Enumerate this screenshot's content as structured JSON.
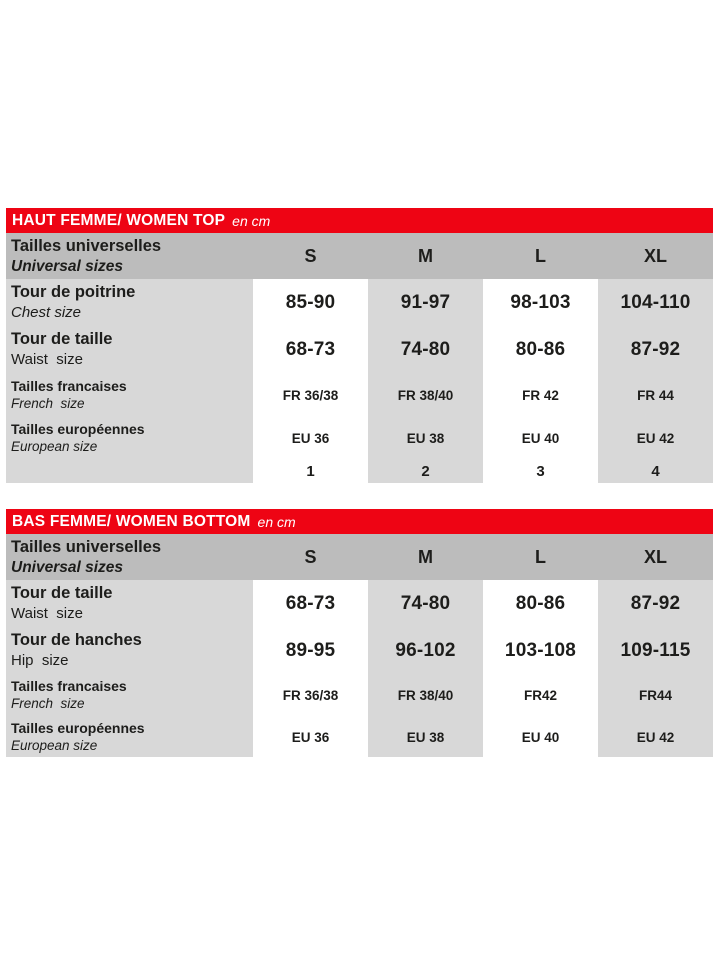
{
  "colors": {
    "banner_red": "#ee0414",
    "header_gray": "#bcbcbc",
    "stripe_gray": "#d8d8d8",
    "text": "#1d1d1b"
  },
  "chart_data": [
    {
      "type": "table",
      "title": "HAUT FEMME/ WOMEN TOP en cm",
      "columns": [
        "Tailles universelles / Universal sizes",
        "S",
        "M",
        "L",
        "XL"
      ],
      "rows": [
        [
          "Tour de poitrine / Chest size",
          "85-90",
          "91-97",
          "98-103",
          "104-110"
        ],
        [
          "Tour de taille / Waist size",
          "68-73",
          "74-80",
          "80-86",
          "87-92"
        ],
        [
          "Tailles francaises / French size",
          "FR 36/38",
          "FR 38/40",
          "FR 42",
          "FR 44"
        ],
        [
          "Tailles européennes / European size",
          "EU 36",
          "EU 38",
          "EU 40",
          "EU 42"
        ],
        [
          "",
          "1",
          "2",
          "3",
          "4"
        ]
      ]
    },
    {
      "type": "table",
      "title": "BAS FEMME/ WOMEN BOTTOM en cm",
      "columns": [
        "Tailles universelles / Universal sizes",
        "S",
        "M",
        "L",
        "XL"
      ],
      "rows": [
        [
          "Tour de taille / Waist size",
          "68-73",
          "74-80",
          "80-86",
          "87-92"
        ],
        [
          "Tour de hanches / Hip size",
          "89-95",
          "96-102",
          "103-108",
          "109-115"
        ],
        [
          "Tailles francaises / French size",
          "FR 36/38",
          "FR 38/40",
          "FR42",
          "FR44"
        ],
        [
          "Tailles européennes / European size",
          "EU 36",
          "EU 38",
          "EU 40",
          "EU 42"
        ]
      ]
    }
  ],
  "tables": [
    {
      "banner": {
        "title": "HAUT FEMME/ WOMEN TOP",
        "unit": "en cm"
      },
      "sizes": {
        "fr": "Tailles universelles",
        "en": "Universal sizes",
        "cols": [
          "S",
          "M",
          "L",
          "XL"
        ]
      },
      "rows": [
        {
          "fr": "Tour de poitrine",
          "en": "Chest size",
          "values": [
            "85-90",
            "91-97",
            "98-103",
            "104-110"
          ]
        },
        {
          "fr": "Tour de taille",
          "en": "Waist  size",
          "values": [
            "68-73",
            "74-80",
            "80-86",
            "87-92"
          ]
        },
        {
          "fr": "Tailles francaises",
          "en": "French  size",
          "values": [
            "FR 36/38",
            "FR 38/40",
            "FR 42",
            "FR 44"
          ]
        },
        {
          "fr": "Tailles européennes",
          "en": "European size",
          "values": [
            "EU 36",
            "EU 38",
            "EU 40",
            "EU 42"
          ]
        },
        {
          "fr": "",
          "en": "",
          "values": [
            "1",
            "2",
            "3",
            "4"
          ]
        }
      ]
    },
    {
      "banner": {
        "title": "BAS FEMME/ WOMEN BOTTOM",
        "unit": "en cm"
      },
      "sizes": {
        "fr": "Tailles universelles",
        "en": "Universal sizes",
        "cols": [
          "S",
          "M",
          "L",
          "XL"
        ]
      },
      "rows": [
        {
          "fr": "Tour de taille",
          "en": "Waist  size",
          "values": [
            "68-73",
            "74-80",
            "80-86",
            "87-92"
          ]
        },
        {
          "fr": "Tour de hanches",
          "en": "Hip  size",
          "values": [
            "89-95",
            "96-102",
            "103-108",
            "109-115"
          ]
        },
        {
          "fr": "Tailles francaises",
          "en": "French  size",
          "values": [
            "FR 36/38",
            "FR 38/40",
            "FR42",
            "FR44"
          ]
        },
        {
          "fr": "Tailles européennes",
          "en": "European size",
          "values": [
            "EU 36",
            "EU 38",
            "EU 40",
            "EU 42"
          ]
        }
      ]
    }
  ]
}
